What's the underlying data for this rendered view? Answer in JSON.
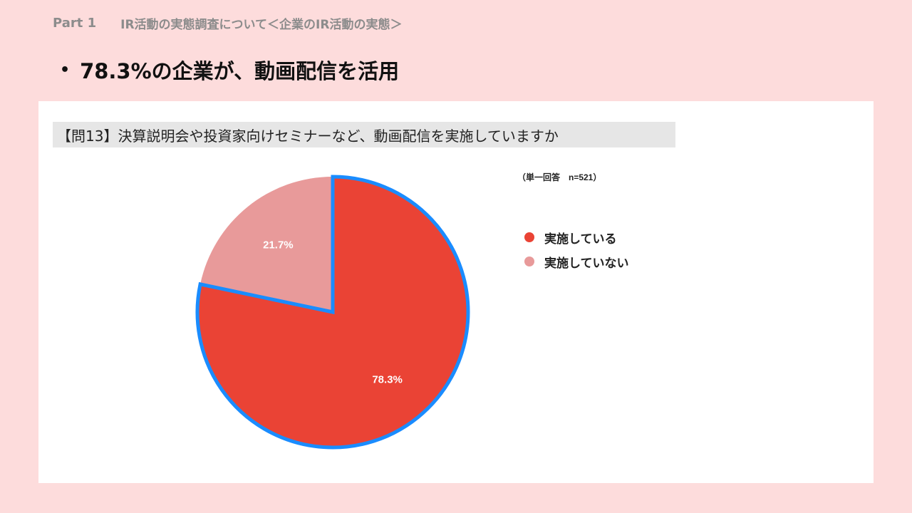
{
  "header": {
    "part": "Part 1",
    "section": "IR活動の実態調査について＜企業のIR活動の実態＞"
  },
  "headline": {
    "bullet": "•",
    "text": "78.3%の企業が、動画配信を活用"
  },
  "question": {
    "text": "【問13】決算説明会や投資家向けセミナーなど、動画配信を実施していますか"
  },
  "note": "（単一回答　n=521）",
  "colors": {
    "background": "#fddcdc",
    "slice_yes": "#ea4335",
    "slice_no": "#e89a9a",
    "highlight_border": "#1a8cff"
  },
  "chart_data": {
    "type": "pie",
    "categories": [
      "実施している",
      "実施していない"
    ],
    "values": [
      78.3,
      21.7
    ],
    "data_labels": [
      "78.3%",
      "21.7%"
    ],
    "title": "",
    "legend": "right",
    "highlighted": "実施している"
  }
}
